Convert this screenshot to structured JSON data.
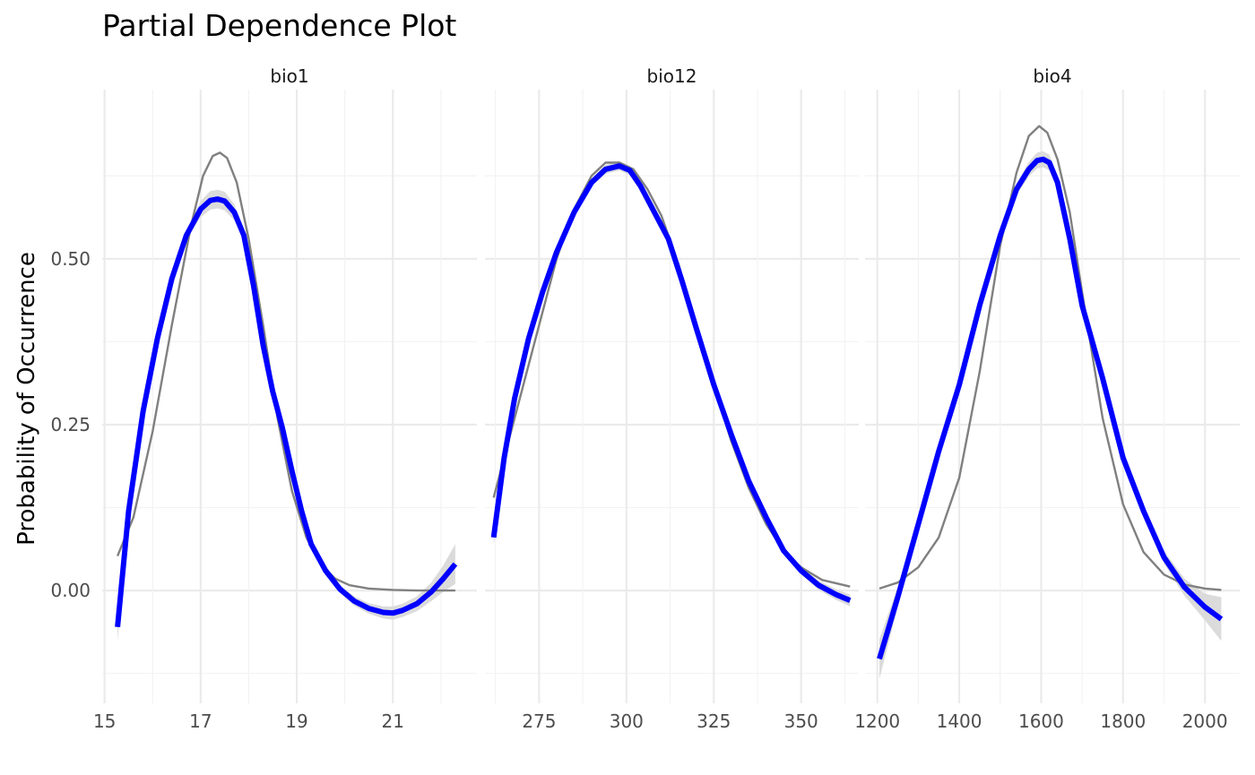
{
  "chart_data": {
    "type": "line",
    "title": "Partial Dependence Plot",
    "xlabel": "",
    "ylabel": "Probability of Occurrence",
    "ylim": [
      -0.17,
      0.755
    ],
    "y_ticks": [
      0.0,
      0.25,
      0.5
    ],
    "y_tick_labels": [
      "0.00",
      "0.25",
      "0.50"
    ],
    "grid": true,
    "colors": {
      "smooth": "#0000ff",
      "raw": "#808080",
      "ribbon": "#d9d9d9"
    },
    "panels": [
      {
        "name": "bio1",
        "xlim": [
          14.95,
          22.75
        ],
        "x_ticks": [
          15,
          17,
          19,
          21
        ],
        "raw": {
          "x": [
            15.27,
            15.6,
            16.0,
            16.4,
            16.8,
            17.05,
            17.25,
            17.4,
            17.55,
            17.75,
            18.0,
            18.3,
            18.6,
            18.9,
            19.2,
            19.5,
            19.8,
            20.1,
            20.5,
            21.0,
            21.5,
            22.3
          ],
          "y": [
            0.052,
            0.11,
            0.24,
            0.4,
            0.55,
            0.625,
            0.655,
            0.66,
            0.652,
            0.615,
            0.53,
            0.4,
            0.26,
            0.15,
            0.08,
            0.04,
            0.018,
            0.008,
            0.003,
            0.001,
            0.0,
            0.0
          ]
        },
        "smooth": {
          "x": [
            15.27,
            15.5,
            15.8,
            16.1,
            16.4,
            16.7,
            17.0,
            17.2,
            17.35,
            17.5,
            17.7,
            17.9,
            18.1,
            18.3,
            18.5,
            18.7,
            18.9,
            19.1,
            19.3,
            19.6,
            19.9,
            20.2,
            20.5,
            20.8,
            21.0,
            21.2,
            21.5,
            21.8,
            22.05,
            22.3
          ],
          "y": [
            -0.055,
            0.12,
            0.27,
            0.38,
            0.47,
            0.535,
            0.575,
            0.588,
            0.59,
            0.587,
            0.57,
            0.535,
            0.46,
            0.37,
            0.3,
            0.245,
            0.18,
            0.12,
            0.07,
            0.03,
            0.002,
            -0.016,
            -0.027,
            -0.033,
            -0.034,
            -0.03,
            -0.02,
            -0.002,
            0.018,
            0.04
          ]
        },
        "band": [
          0.022,
          0.008,
          0.006,
          0.006,
          0.006,
          0.007,
          0.012,
          0.014,
          0.014,
          0.014,
          0.012,
          0.008,
          0.006,
          0.006,
          0.006,
          0.006,
          0.006,
          0.006,
          0.006,
          0.006,
          0.006,
          0.007,
          0.008,
          0.009,
          0.01,
          0.01,
          0.011,
          0.014,
          0.02,
          0.03
        ]
      },
      {
        "name": "bio12",
        "xlim": [
          259.5,
          366.5
        ],
        "x_ticks": [
          275,
          300,
          325,
          350
        ],
        "raw": {
          "x": [
            262.0,
            266.0,
            270.0,
            275.0,
            280.0,
            285.0,
            290.0,
            294.0,
            298.0,
            302.0,
            306.0,
            310.0,
            315.0,
            320.0,
            325.0,
            330.0,
            335.0,
            340.0,
            345.0,
            350.0,
            356.0,
            364.0
          ],
          "y": [
            0.14,
            0.22,
            0.3,
            0.4,
            0.5,
            0.575,
            0.625,
            0.645,
            0.645,
            0.635,
            0.605,
            0.565,
            0.49,
            0.4,
            0.31,
            0.225,
            0.155,
            0.1,
            0.06,
            0.035,
            0.016,
            0.006
          ]
        },
        "smooth": {
          "x": [
            262.0,
            265.0,
            268.0,
            272.0,
            276.0,
            280.0,
            285.0,
            290.0,
            294.0,
            298.0,
            301.0,
            304.0,
            308.0,
            312.0,
            316.0,
            320.0,
            325.0,
            330.0,
            335.0,
            340.0,
            345.0,
            350.0,
            355.0,
            360.0,
            364.0
          ],
          "y": [
            0.08,
            0.2,
            0.29,
            0.38,
            0.45,
            0.51,
            0.57,
            0.615,
            0.635,
            0.64,
            0.633,
            0.61,
            0.57,
            0.53,
            0.465,
            0.395,
            0.31,
            0.235,
            0.165,
            0.11,
            0.06,
            0.03,
            0.008,
            -0.006,
            -0.015
          ]
        },
        "band": [
          0.012,
          0.008,
          0.006,
          0.005,
          0.005,
          0.005,
          0.005,
          0.006,
          0.007,
          0.007,
          0.007,
          0.006,
          0.005,
          0.005,
          0.005,
          0.005,
          0.005,
          0.005,
          0.005,
          0.005,
          0.005,
          0.006,
          0.007,
          0.008,
          0.009
        ]
      },
      {
        "name": "bio4",
        "xlim": [
          1170,
          2085
        ],
        "x_ticks": [
          1200,
          1400,
          1600,
          1800,
          2000
        ],
        "x_tick_labels": [
          "1200",
          "1400",
          "1600",
          "1800",
          "2000"
        ],
        "raw": {
          "x": [
            1205.0,
            1250.0,
            1300.0,
            1350.0,
            1400.0,
            1450.0,
            1500.0,
            1540.0,
            1570.0,
            1595.0,
            1615.0,
            1640.0,
            1670.0,
            1700.0,
            1750.0,
            1800.0,
            1850.0,
            1900.0,
            1950.0,
            2000.0,
            2040.0
          ],
          "y": [
            0.003,
            0.012,
            0.035,
            0.08,
            0.17,
            0.33,
            0.52,
            0.63,
            0.685,
            0.7,
            0.69,
            0.65,
            0.57,
            0.45,
            0.26,
            0.13,
            0.058,
            0.024,
            0.009,
            0.003,
            0.001
          ]
        },
        "smooth": {
          "x": [
            1205.0,
            1250.0,
            1300.0,
            1350.0,
            1400.0,
            1450.0,
            1500.0,
            1540.0,
            1570.0,
            1590.0,
            1605.0,
            1620.0,
            1640.0,
            1670.0,
            1700.0,
            1750.0,
            1800.0,
            1850.0,
            1900.0,
            1950.0,
            2000.0,
            2040.0
          ],
          "y": [
            -0.103,
            -0.01,
            0.1,
            0.21,
            0.31,
            0.43,
            0.535,
            0.605,
            0.635,
            0.648,
            0.65,
            0.645,
            0.615,
            0.53,
            0.43,
            0.32,
            0.2,
            0.12,
            0.05,
            0.005,
            -0.025,
            -0.043
          ]
        },
        "band": [
          0.03,
          0.015,
          0.008,
          0.006,
          0.006,
          0.006,
          0.007,
          0.009,
          0.011,
          0.012,
          0.012,
          0.012,
          0.011,
          0.009,
          0.008,
          0.007,
          0.007,
          0.008,
          0.01,
          0.013,
          0.02,
          0.033
        ]
      }
    ]
  }
}
